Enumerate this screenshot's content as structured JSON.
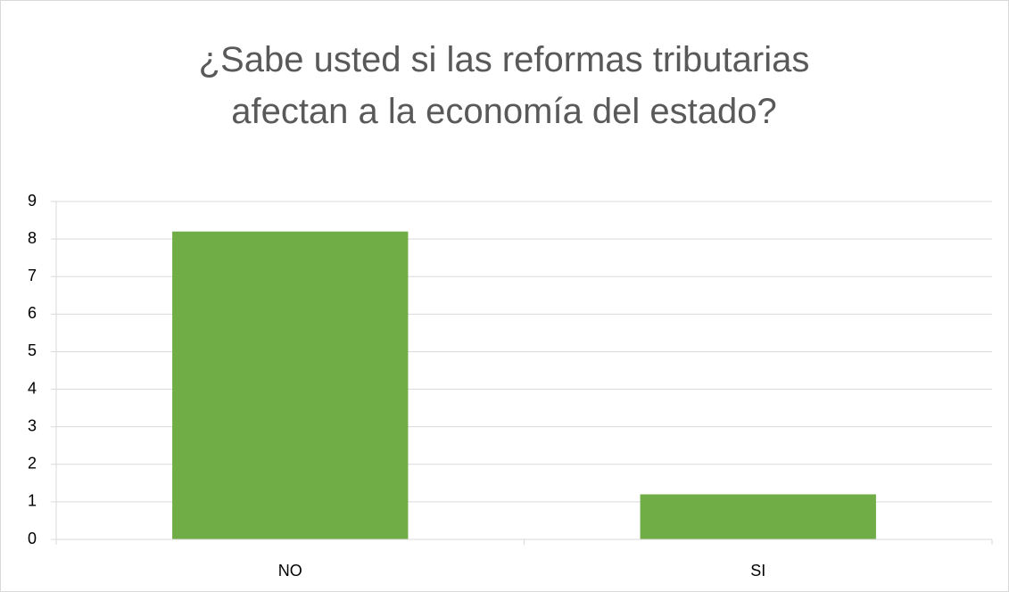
{
  "chart_data": {
    "type": "bar",
    "title": "¿Sabe usted si las reformas tributarias afectan a la economía del estado?",
    "categories": [
      "NO",
      "SI"
    ],
    "values": [
      8.2,
      1.2
    ],
    "color": "#70ad47",
    "ylim": [
      0,
      9
    ],
    "yticks": [
      0,
      1,
      2,
      3,
      4,
      5,
      6,
      7,
      8,
      9
    ],
    "grid": true
  }
}
